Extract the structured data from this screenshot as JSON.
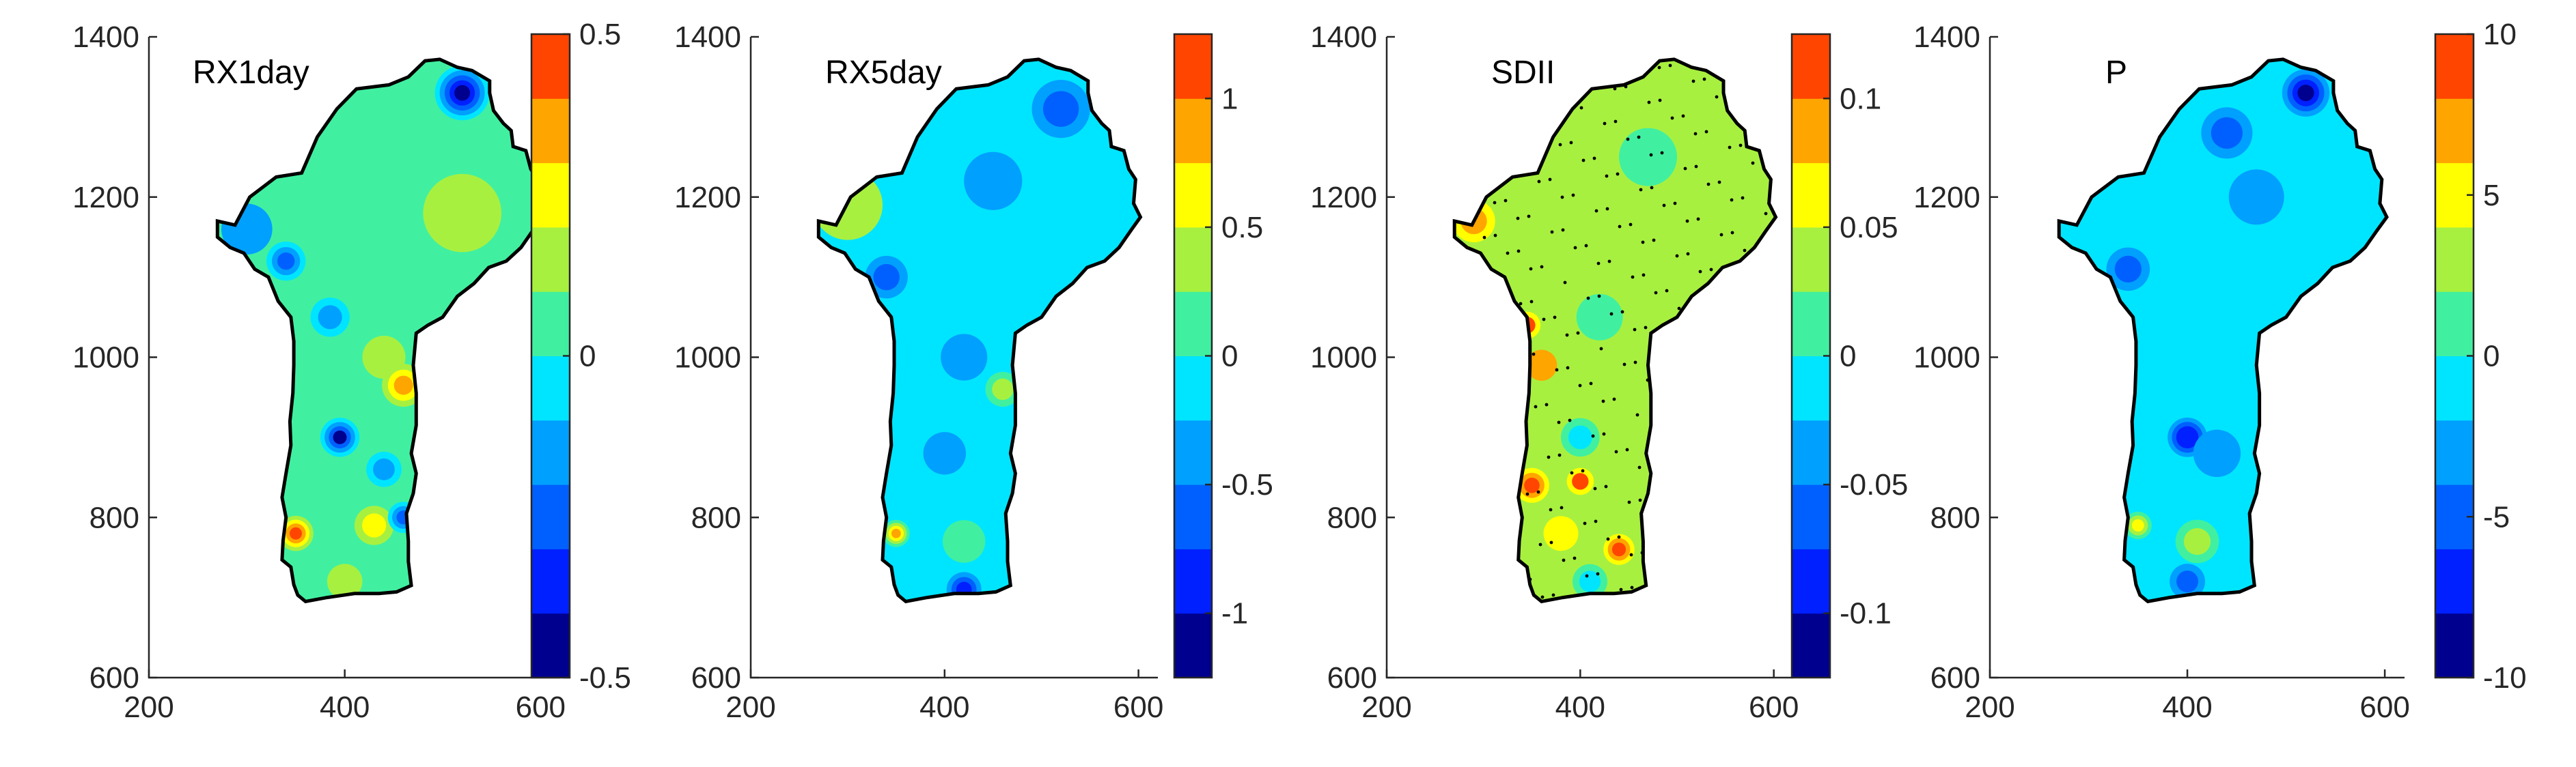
{
  "chart_data": [
    {
      "type": "heatmap",
      "title": "RX1day",
      "x_ticks": [
        200,
        400,
        600
      ],
      "y_ticks": [
        600,
        800,
        1000,
        1200,
        1400
      ],
      "xlim": [
        200,
        620
      ],
      "ylim": [
        600,
        1400
      ],
      "colorbar": {
        "min": -0.5,
        "max": 0.5,
        "levels": 10,
        "tick_values": [
          -0.5,
          0,
          0.5
        ],
        "tick_labels": [
          "-0.5",
          "0",
          "0.5"
        ]
      },
      "background_value": 0.02,
      "blobs": [
        {
          "x": 520,
          "y": 1330,
          "value": -0.45,
          "r": 28
        },
        {
          "x": 340,
          "y": 1120,
          "value": -0.25,
          "r": 20
        },
        {
          "x": 385,
          "y": 1050,
          "value": -0.2,
          "r": 20
        },
        {
          "x": 440,
          "y": 1000,
          "value": 0.12,
          "r": 22
        },
        {
          "x": 460,
          "y": 965,
          "value": 0.35,
          "r": 22
        },
        {
          "x": 395,
          "y": 900,
          "value": -0.4,
          "r": 20
        },
        {
          "x": 440,
          "y": 860,
          "value": -0.15,
          "r": 18
        },
        {
          "x": 350,
          "y": 780,
          "value": 0.45,
          "r": 18
        },
        {
          "x": 430,
          "y": 790,
          "value": 0.2,
          "r": 20
        },
        {
          "x": 460,
          "y": 800,
          "value": -0.3,
          "r": 16
        },
        {
          "x": 400,
          "y": 720,
          "value": 0.1,
          "r": 18
        },
        {
          "x": 520,
          "y": 1180,
          "value": 0.1,
          "r": 40
        },
        {
          "x": 300,
          "y": 1160,
          "value": -0.12,
          "r": 26
        }
      ]
    },
    {
      "type": "heatmap",
      "title": "RX5day",
      "x_ticks": [
        200,
        400,
        600
      ],
      "y_ticks": [
        600,
        800,
        1000,
        1200,
        1400
      ],
      "xlim": [
        200,
        620
      ],
      "ylim": [
        600,
        1400
      ],
      "colorbar": {
        "min": -1.25,
        "max": 1.25,
        "levels": 10,
        "tick_values": [
          -1,
          -0.5,
          0,
          0.5,
          1
        ],
        "tick_labels": [
          "-1",
          "-0.5",
          "0",
          "0.5",
          "1"
        ]
      },
      "background_value": -0.1,
      "blobs": [
        {
          "x": 520,
          "y": 1310,
          "value": -0.55,
          "r": 30
        },
        {
          "x": 300,
          "y": 1190,
          "value": 0.25,
          "r": 36
        },
        {
          "x": 450,
          "y": 1220,
          "value": -0.35,
          "r": 30
        },
        {
          "x": 340,
          "y": 1100,
          "value": -0.6,
          "r": 22
        },
        {
          "x": 420,
          "y": 1000,
          "value": -0.35,
          "r": 24
        },
        {
          "x": 460,
          "y": 960,
          "value": 0.3,
          "r": 18
        },
        {
          "x": 400,
          "y": 880,
          "value": -0.4,
          "r": 22
        },
        {
          "x": 350,
          "y": 780,
          "value": 0.9,
          "r": 14
        },
        {
          "x": 420,
          "y": 770,
          "value": 0.15,
          "r": 22
        },
        {
          "x": 420,
          "y": 710,
          "value": -0.9,
          "r": 18
        }
      ]
    },
    {
      "type": "heatmap",
      "title": "SDII",
      "x_ticks": [
        200,
        400,
        600
      ],
      "y_ticks": [
        600,
        800,
        1000,
        1200,
        1400
      ],
      "xlim": [
        200,
        620
      ],
      "ylim": [
        600,
        1400
      ],
      "colorbar": {
        "min": -0.125,
        "max": 0.125,
        "levels": 10,
        "tick_values": [
          -0.1,
          -0.05,
          0,
          0.05,
          0.1
        ],
        "tick_labels": [
          "-0.1",
          "-0.05",
          "0",
          "0.05",
          "0.1"
        ]
      },
      "background_value": 0.04,
      "blobs": [
        {
          "x": 290,
          "y": 1170,
          "value": 0.085,
          "r": 22
        },
        {
          "x": 470,
          "y": 1250,
          "value": 0.02,
          "r": 30
        },
        {
          "x": 420,
          "y": 1050,
          "value": 0.01,
          "r": 24
        },
        {
          "x": 345,
          "y": 1040,
          "value": 0.1,
          "r": 14
        },
        {
          "x": 360,
          "y": 990,
          "value": 0.075,
          "r": 16
        },
        {
          "x": 400,
          "y": 900,
          "value": -0.01,
          "r": 20
        },
        {
          "x": 350,
          "y": 840,
          "value": 0.115,
          "r": 18
        },
        {
          "x": 400,
          "y": 845,
          "value": 0.1,
          "r": 14
        },
        {
          "x": 440,
          "y": 760,
          "value": 0.12,
          "r": 16
        },
        {
          "x": 380,
          "y": 780,
          "value": 0.06,
          "r": 18
        },
        {
          "x": 410,
          "y": 720,
          "value": -0.01,
          "r": 18
        }
      ]
    },
    {
      "type": "heatmap",
      "title": "P",
      "x_ticks": [
        200,
        400,
        600
      ],
      "y_ticks": [
        600,
        800,
        1000,
        1200,
        1400
      ],
      "xlim": [
        200,
        620
      ],
      "ylim": [
        600,
        1400
      ],
      "colorbar": {
        "min": -10,
        "max": 10,
        "levels": 10,
        "tick_values": [
          -10,
          -5,
          0,
          5,
          10
        ],
        "tick_labels": [
          "-10",
          "-5",
          "0",
          "5",
          "10"
        ]
      },
      "background_value": -1,
      "blobs": [
        {
          "x": 520,
          "y": 1330,
          "value": -9,
          "r": 24
        },
        {
          "x": 440,
          "y": 1280,
          "value": -4.5,
          "r": 26
        },
        {
          "x": 470,
          "y": 1200,
          "value": -3,
          "r": 28
        },
        {
          "x": 340,
          "y": 1110,
          "value": -4.5,
          "r": 22
        },
        {
          "x": 400,
          "y": 900,
          "value": -8,
          "r": 20
        },
        {
          "x": 430,
          "y": 880,
          "value": -3,
          "r": 24
        },
        {
          "x": 350,
          "y": 790,
          "value": 4,
          "r": 14
        },
        {
          "x": 410,
          "y": 770,
          "value": 2,
          "r": 22
        },
        {
          "x": 400,
          "y": 720,
          "value": -4.5,
          "r": 18
        }
      ]
    }
  ],
  "colormap": [
    "#00008f",
    "#0020ff",
    "#0060ff",
    "#00a0ff",
    "#00e5ff",
    "#40f0a0",
    "#a8f040",
    "#ffff00",
    "#ffa500",
    "#ff4500"
  ],
  "map_outline_data_coords": [
    [
      270,
      1170
    ],
    [
      288,
      1165
    ],
    [
      303,
      1200
    ],
    [
      330,
      1225
    ],
    [
      356,
      1230
    ],
    [
      372,
      1275
    ],
    [
      392,
      1310
    ],
    [
      412,
      1335
    ],
    [
      445,
      1340
    ],
    [
      465,
      1350
    ],
    [
      482,
      1370
    ],
    [
      497,
      1372
    ],
    [
      515,
      1362
    ],
    [
      530,
      1358
    ],
    [
      548,
      1345
    ],
    [
      548,
      1330
    ],
    [
      552,
      1308
    ],
    [
      562,
      1292
    ],
    [
      570,
      1283
    ],
    [
      572,
      1263
    ],
    [
      585,
      1258
    ],
    [
      590,
      1235
    ],
    [
      597,
      1222
    ],
    [
      595,
      1192
    ],
    [
      602,
      1175
    ],
    [
      592,
      1158
    ],
    [
      580,
      1137
    ],
    [
      565,
      1120
    ],
    [
      547,
      1112
    ],
    [
      532,
      1092
    ],
    [
      515,
      1076
    ],
    [
      500,
      1050
    ],
    [
      485,
      1040
    ],
    [
      473,
      1030
    ],
    [
      470,
      990
    ],
    [
      473,
      955
    ],
    [
      473,
      915
    ],
    [
      468,
      880
    ],
    [
      473,
      855
    ],
    [
      470,
      830
    ],
    [
      463,
      805
    ],
    [
      465,
      770
    ],
    [
      465,
      745
    ],
    [
      468,
      715
    ],
    [
      453,
      707
    ],
    [
      435,
      705
    ],
    [
      410,
      705
    ],
    [
      382,
      700
    ],
    [
      360,
      695
    ],
    [
      352,
      703
    ],
    [
      348,
      716
    ],
    [
      345,
      738
    ],
    [
      336,
      747
    ],
    [
      337,
      771
    ],
    [
      340,
      800
    ],
    [
      336,
      825
    ],
    [
      340,
      855
    ],
    [
      345,
      890
    ],
    [
      344,
      920
    ],
    [
      347,
      955
    ],
    [
      348,
      990
    ],
    [
      348,
      1020
    ],
    [
      345,
      1050
    ],
    [
      332,
      1070
    ],
    [
      322,
      1100
    ],
    [
      308,
      1110
    ],
    [
      297,
      1130
    ],
    [
      283,
      1137
    ],
    [
      270,
      1150
    ]
  ]
}
